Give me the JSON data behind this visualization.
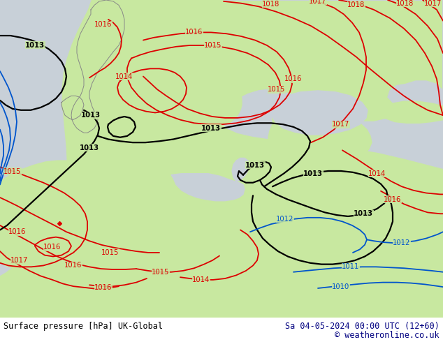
{
  "title_left": "Surface pressure [hPa] UK-Global",
  "title_right": "Sa 04-05-2024 00:00 UTC (12+60)",
  "copyright": "© weatheronline.co.uk",
  "bg_color": "#c8e8a0",
  "sea_color": "#c8d0d8",
  "footer_bg": "#ffffff",
  "footer_color": "#000080",
  "footer_fontsize": 8.5,
  "red": "#dd0000",
  "black": "#000000",
  "blue": "#0055cc",
  "grey_coast": "#888888",
  "lw_isobar": 1.3,
  "lw_black": 1.6,
  "lw_blue": 1.3,
  "label_fs": 7.2
}
